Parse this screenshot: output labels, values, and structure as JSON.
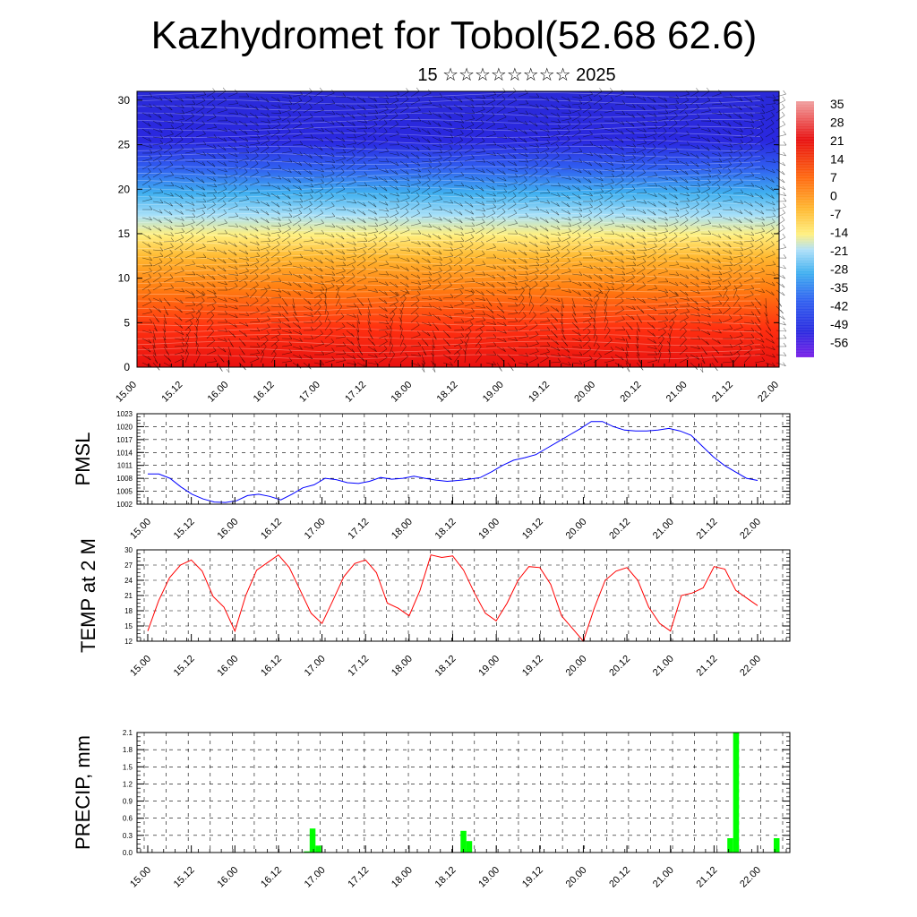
{
  "title": "Kazhydromet for Tobol(52.68 62.6)",
  "subtitle": "15 ☆☆☆☆☆☆☆☆ 2025",
  "chart_data": [
    {
      "type": "heatmap",
      "title": "",
      "ylabel": "",
      "ylim": [
        0,
        31
      ],
      "yticks": [
        0,
        5,
        10,
        15,
        20,
        25,
        30
      ],
      "xticklabels": [
        "15.00",
        "15.12",
        "16.00",
        "16.12",
        "17.00",
        "17.12",
        "18.00",
        "18.12",
        "19.00",
        "19.12",
        "20.00",
        "20.12",
        "21.00",
        "21.12",
        "22.00"
      ],
      "colorbar_labels": [
        "35",
        "28",
        "21",
        "14",
        "7",
        "0",
        "-7",
        "-14",
        "-21",
        "-28",
        "-35",
        "-42",
        "-49",
        "-56"
      ],
      "colors": {
        "warm": "#e01010",
        "mid": "#ffee80",
        "cool": "#40b0f0",
        "cold": "#2020e0"
      }
    },
    {
      "type": "line",
      "ylabel": "PMSL",
      "ylim": [
        1002,
        1023
      ],
      "yticks": [
        1002,
        1005,
        1008,
        1011,
        1014,
        1017,
        1020,
        1023
      ],
      "xticklabels": [
        "15.00",
        "15.12",
        "16.00",
        "16.12",
        "17.00",
        "17.12",
        "18.00",
        "18.12",
        "19.00",
        "19.12",
        "20.00",
        "20.12",
        "21.00",
        "21.12",
        "22.00"
      ],
      "color": "#0000ff",
      "values": [
        1009,
        1009,
        1008,
        1006,
        1004.3,
        1003.2,
        1002.5,
        1002.4,
        1002.8,
        1004,
        1004.3,
        1003.8,
        1003,
        1004.3,
        1005.8,
        1006.5,
        1008,
        1007.7,
        1007,
        1006.8,
        1007.3,
        1008.2,
        1007.8,
        1008,
        1008.5,
        1008,
        1007.6,
        1007.3,
        1007.5,
        1007.8,
        1008.2,
        1009.5,
        1011,
        1012.2,
        1012.8,
        1013.5,
        1015,
        1016.5,
        1018,
        1019.5,
        1021.2,
        1021.2,
        1020,
        1019.2,
        1019,
        1019,
        1019.2,
        1019.6,
        1019,
        1018,
        1015.5,
        1013,
        1011,
        1009.5,
        1008,
        1007.5
      ]
    },
    {
      "type": "line",
      "ylabel": "TEMP at 2 M",
      "ylim": [
        12,
        30
      ],
      "yticks": [
        12,
        15,
        18,
        21,
        24,
        27,
        30
      ],
      "xticklabels": [
        "15.00",
        "15.12",
        "16.00",
        "16.12",
        "17.00",
        "17.12",
        "18.00",
        "18.12",
        "19.00",
        "19.12",
        "20.00",
        "20.12",
        "21.00",
        "21.12",
        "22.00"
      ],
      "color": "#ff0000",
      "values": [
        14,
        20,
        24.5,
        27,
        28,
        25.8,
        20.8,
        18.7,
        14,
        21,
        26,
        27.5,
        29,
        26.5,
        22,
        17.5,
        15.5,
        20,
        24.7,
        27.3,
        28,
        25.5,
        19.5,
        18.5,
        17,
        22,
        29,
        28.5,
        28.8,
        26,
        21.5,
        17.5,
        16,
        19.5,
        24,
        26.7,
        26.5,
        23.2,
        17,
        14.5,
        12,
        18.5,
        24,
        25.8,
        26.5,
        24,
        18.7,
        15.5,
        14,
        21,
        21.5,
        22.5,
        26.7,
        26.2,
        22,
        20.5,
        19
      ]
    },
    {
      "type": "bar",
      "ylabel": "PRECIP, mm",
      "ylim": [
        0,
        2.1
      ],
      "yticks": [
        "0.0",
        "0.3",
        "0.6",
        "0.9",
        "1.2",
        "1.5",
        "1.8",
        "2.1"
      ],
      "xticklabels": [
        "15.00",
        "15.12",
        "16.00",
        "16.12",
        "17.00",
        "17.12",
        "18.00",
        "18.12",
        "19.00",
        "19.12",
        "20.00",
        "20.12",
        "21.00",
        "21.12",
        "22.00"
      ],
      "color": "#00ff00",
      "values": [
        0,
        0,
        0,
        0,
        0,
        0,
        0,
        0,
        0,
        0,
        0,
        0,
        0,
        0,
        0,
        0,
        0,
        0,
        0,
        0,
        0,
        0,
        0,
        0,
        0,
        0,
        0,
        0,
        0.02,
        0.42,
        0.12,
        0,
        0,
        0,
        0,
        0,
        0,
        0,
        0,
        0,
        0,
        0,
        0,
        0,
        0,
        0,
        0,
        0,
        0,
        0,
        0,
        0,
        0,
        0,
        0,
        0.38,
        0.2,
        0,
        0,
        0,
        0,
        0,
        0,
        0,
        0,
        0,
        0,
        0,
        0,
        0,
        0,
        0,
        0,
        0,
        0,
        0,
        0,
        0,
        0,
        0,
        0,
        0,
        0,
        0,
        0,
        0,
        0,
        0,
        0,
        0,
        0,
        0,
        0,
        0,
        0,
        0,
        0,
        0,
        0,
        0,
        0,
        0.25,
        2.1,
        0,
        0,
        0,
        0,
        0,
        0,
        0.25,
        0
      ]
    }
  ]
}
